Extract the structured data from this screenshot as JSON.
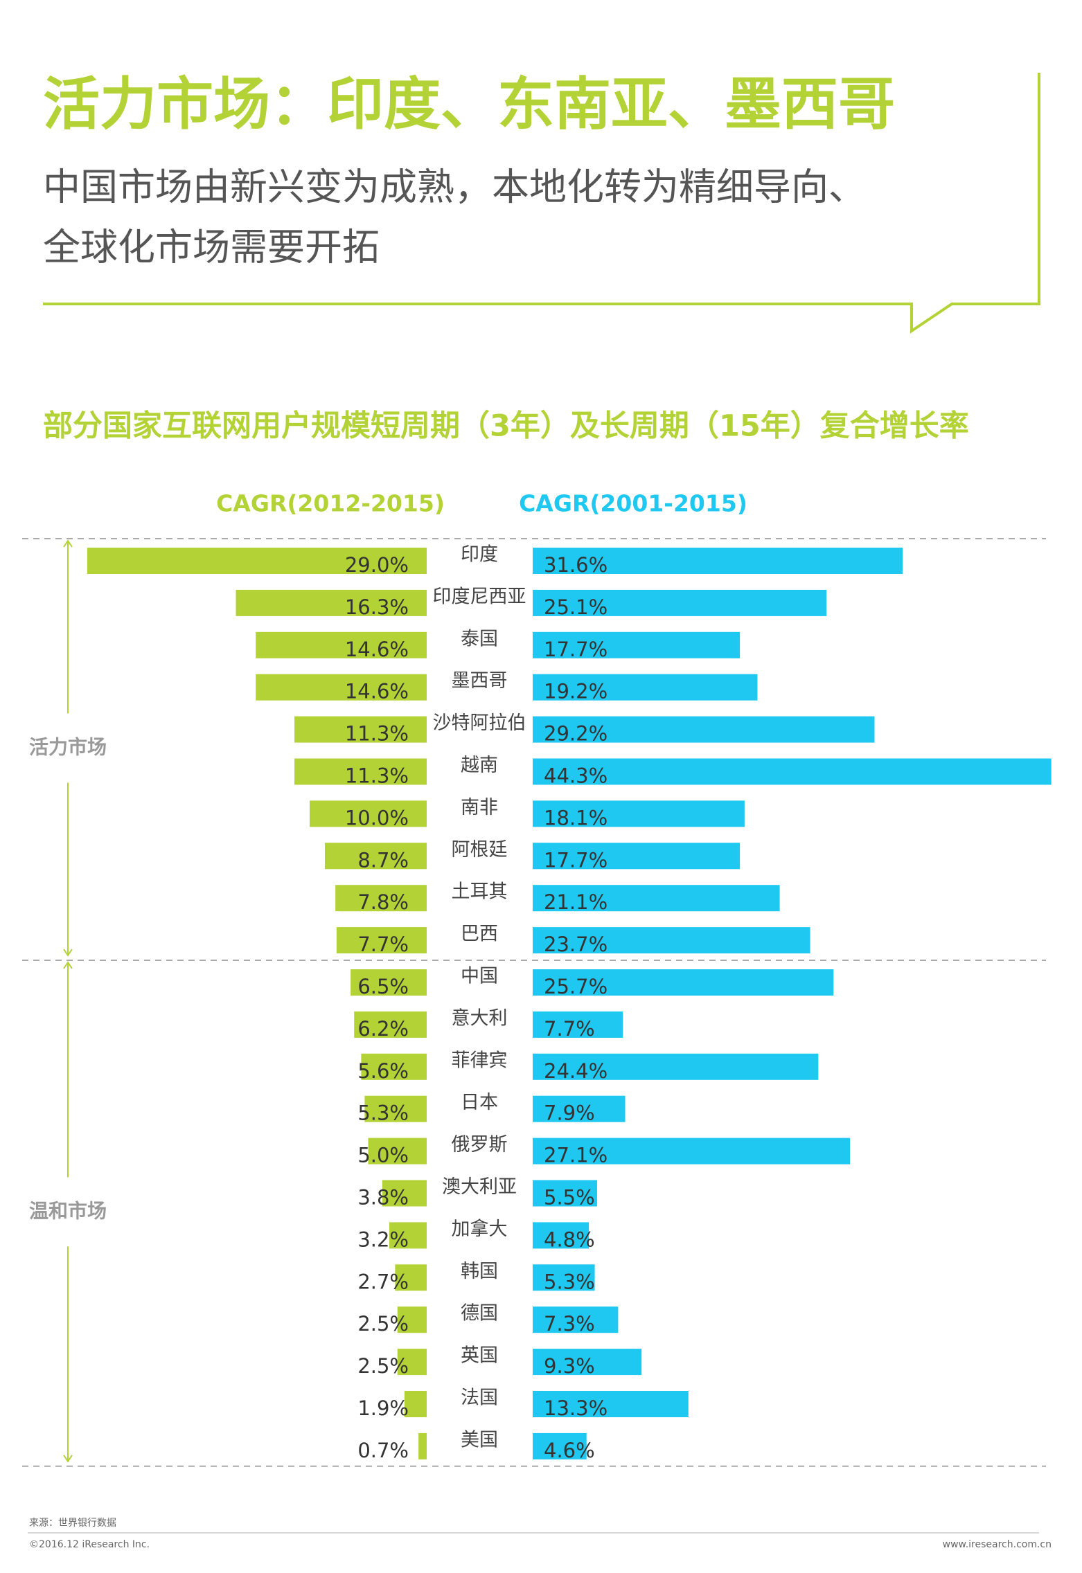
{
  "header": {
    "title": "活力市场：印度、东南亚、墨西哥",
    "subtitle_lines": [
      "中国市场由新兴变为成熟，本地化转为精细导向、",
      "全球化市场需要开拓"
    ]
  },
  "chart_data": {
    "type": "butterfly",
    "title": "部分国家互联网用户规模短周期（3年）及长周期（15年）复合增长率",
    "groups": [
      {
        "label": "活力市场",
        "categories": [
          "印度",
          "印度尼西亚",
          "泰国",
          "墨西哥",
          "沙特阿拉伯",
          "越南",
          "南非",
          "阿根廷",
          "土耳其",
          "巴西"
        ]
      },
      {
        "label": "温和市场",
        "categories": [
          "中国",
          "意大利",
          "菲律宾",
          "日本",
          "俄罗斯",
          "澳大利亚",
          "加拿大",
          "韩国",
          "德国",
          "英国",
          "法国",
          "美国"
        ]
      }
    ],
    "series": [
      {
        "name": "CAGR(2012-2015)",
        "color": "#b3d235",
        "values": [
          29.0,
          16.3,
          14.6,
          14.6,
          11.3,
          11.3,
          10.0,
          8.7,
          7.8,
          7.7,
          6.5,
          6.2,
          5.6,
          5.3,
          5.0,
          3.8,
          3.2,
          2.7,
          2.5,
          2.5,
          1.9,
          0.7
        ],
        "value_labels": [
          "29.0%",
          "16.3%",
          "14.6%",
          "14.6%",
          "11.3%",
          "11.3%",
          "10.0%",
          "8.7%",
          "7.8%",
          "7.7%",
          "6.5%",
          "6.2%",
          "5.6%",
          "5.3%",
          "5.0%",
          "3.8%",
          "3.2%",
          "2.7%",
          "2.5%",
          "2.5%",
          "1.9%",
          "0.7%"
        ]
      },
      {
        "name": "CAGR(2001-2015)",
        "color": "#1ec8f0",
        "values": [
          31.6,
          25.1,
          17.7,
          19.2,
          29.2,
          44.3,
          18.1,
          17.7,
          21.1,
          23.7,
          25.7,
          7.7,
          24.4,
          7.9,
          27.1,
          5.5,
          4.8,
          5.3,
          7.3,
          9.3,
          13.3,
          4.6
        ],
        "value_labels": [
          "31.6%",
          "25.1%",
          "17.7%",
          "19.2%",
          "29.2%",
          "44.3%",
          "18.1%",
          "17.7%",
          "21.1%",
          "23.7%",
          "25.7%",
          "7.7%",
          "24.4%",
          "7.9%",
          "27.1%",
          "5.5%",
          "4.8%",
          "5.3%",
          "7.3%",
          "9.3%",
          "13.3%",
          "4.6%"
        ]
      }
    ]
  },
  "footer": {
    "source": "来源：世界银行数据",
    "copyright": "©2016.12 iResearch Inc.",
    "url": "www.iresearch.com.cn"
  }
}
